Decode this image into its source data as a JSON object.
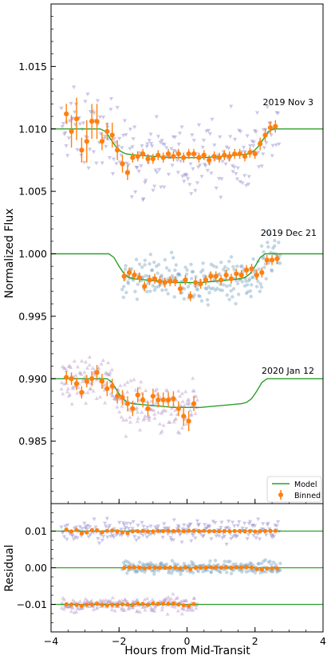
{
  "chart_data": [
    {
      "type": "scatter",
      "panel": "light curves",
      "xlabel": "",
      "ylabel": "Normalized Flux",
      "xlim": [
        -4,
        4
      ],
      "ylim": [
        0.98,
        1.02
      ],
      "y_ticks": [
        "1.015",
        "1.010",
        "1.005",
        "1.000",
        "0.995",
        "0.990",
        "0.985"
      ],
      "y_tick_values": [
        1.015,
        1.01,
        1.005,
        1.0,
        0.995,
        0.99,
        0.985
      ],
      "legend": {
        "position": "lower-right",
        "entries": [
          "Model",
          "Binned"
        ]
      },
      "annotations": [
        {
          "text": "2019 Nov 3",
          "x": 3.3,
          "y": 1.0118
        },
        {
          "text": "2019 Dec 21",
          "x": 3.3,
          "y": 1.0018
        },
        {
          "text": "2020 Jan 12",
          "x": 3.3,
          "y": 0.9918
        }
      ],
      "transits": [
        {
          "label": "2019 Nov 3",
          "raw_color": "#8f85c9",
          "raw_marker": "triangle-down",
          "raw_x_range": [
            -3.7,
            2.7
          ],
          "raw_baseline": 1.01,
          "raw_depth": 0.0023,
          "raw_scatter": 0.0022,
          "model": {
            "x": [
              -4,
              -2.55,
              -2.4,
              -2.25,
              -2.1,
              -1.95,
              -1.8,
              -1.5,
              -1.0,
              -0.5,
              0,
              0.5,
              1.0,
              1.5,
              1.8,
              1.95,
              2.1,
              2.25,
              2.4,
              2.55,
              4
            ],
            "y": [
              1.01,
              1.01,
              1.0098,
              1.0092,
              1.0086,
              1.0082,
              1.008,
              1.0079,
              1.0078,
              1.0077,
              1.0077,
              1.0077,
              1.0078,
              1.0079,
              1.008,
              1.0082,
              1.0086,
              1.0092,
              1.0098,
              1.01,
              1.01
            ]
          },
          "binned": {
            "x": [
              -3.55,
              -3.4,
              -3.25,
              -3.1,
              -2.95,
              -2.8,
              -2.65,
              -2.5,
              -2.35,
              -2.2,
              -2.05,
              -1.9,
              -1.75,
              -1.6,
              -1.45,
              -1.3,
              -1.15,
              -1.0,
              -0.85,
              -0.7,
              -0.55,
              -0.4,
              -0.25,
              -0.1,
              0.05,
              0.2,
              0.35,
              0.5,
              0.65,
              0.8,
              0.95,
              1.1,
              1.25,
              1.4,
              1.55,
              1.7,
              1.85,
              2.0,
              2.15,
              2.3,
              2.45,
              2.6
            ],
            "y": [
              1.0112,
              1.0098,
              1.0108,
              1.0083,
              1.009,
              1.0106,
              1.0106,
              1.009,
              1.0098,
              1.0095,
              1.0083,
              1.0072,
              1.0065,
              1.0077,
              1.0078,
              1.008,
              1.0076,
              1.0076,
              1.0079,
              1.0077,
              1.008,
              1.0078,
              1.008,
              1.0077,
              1.008,
              1.008,
              1.0077,
              1.0079,
              1.0075,
              1.0078,
              1.0077,
              1.0079,
              1.0078,
              1.008,
              1.008,
              1.0078,
              1.0081,
              1.008,
              1.0088,
              1.0095,
              1.0101,
              1.0102
            ],
            "err": [
              0.0008,
              0.0013,
              0.0017,
              0.001,
              0.0017,
              0.0014,
              0.0014,
              0.0007,
              0.0007,
              0.001,
              0.0008,
              0.0007,
              0.0006,
              0.0004,
              0.0004,
              0.0004,
              0.0004,
              0.0004,
              0.0004,
              0.0004,
              0.0004,
              0.0004,
              0.0004,
              0.0004,
              0.0004,
              0.0004,
              0.0004,
              0.0004,
              0.0004,
              0.0004,
              0.0004,
              0.0004,
              0.0004,
              0.0004,
              0.0004,
              0.0004,
              0.0004,
              0.0004,
              0.0005,
              0.0005,
              0.0005,
              0.0005
            ]
          }
        },
        {
          "label": "2019 Dec 21",
          "raw_color": "#7fa7c4",
          "raw_marker": "circle",
          "raw_x_range": [
            -1.9,
            2.75
          ],
          "raw_baseline": 1.0,
          "raw_depth": 0.0022,
          "raw_scatter": 0.0012,
          "model": {
            "x": [
              -4,
              -2.3,
              -2.15,
              -2.0,
              -1.85,
              -1.7,
              -1.55,
              -1.2,
              -0.8,
              -0.4,
              0,
              0.4,
              0.8,
              1.2,
              1.55,
              1.7,
              1.85,
              2.0,
              2.15,
              2.3,
              4
            ],
            "y": [
              1.0,
              1.0,
              0.9997,
              0.999,
              0.9984,
              0.9981,
              0.998,
              0.9979,
              0.9978,
              0.9977,
              0.9977,
              0.9977,
              0.9978,
              0.9979,
              0.998,
              0.9981,
              0.9984,
              0.999,
              0.9997,
              1.0,
              1.0
            ]
          },
          "binned": {
            "x": [
              -1.85,
              -1.7,
              -1.55,
              -1.4,
              -1.25,
              -1.1,
              -0.95,
              -0.8,
              -0.65,
              -0.5,
              -0.35,
              -0.2,
              -0.05,
              0.1,
              0.25,
              0.4,
              0.55,
              0.7,
              0.85,
              1.0,
              1.15,
              1.3,
              1.45,
              1.6,
              1.75,
              1.9,
              2.05,
              2.2,
              2.35,
              2.5,
              2.65
            ],
            "y": [
              0.9982,
              0.9985,
              0.9983,
              0.9981,
              0.9974,
              0.9979,
              0.998,
              0.9978,
              0.9977,
              0.9978,
              0.9978,
              0.9972,
              0.9979,
              0.9966,
              0.9977,
              0.9976,
              0.9979,
              0.9982,
              0.9982,
              0.9979,
              0.9983,
              0.998,
              0.9984,
              0.9983,
              0.9987,
              0.9988,
              0.9983,
              0.9985,
              0.9995,
              0.9995,
              0.9996
            ],
            "err": [
              0.0004,
              0.0004,
              0.0004,
              0.0004,
              0.0004,
              0.0004,
              0.0004,
              0.0004,
              0.0004,
              0.0004,
              0.0004,
              0.0004,
              0.0004,
              0.0004,
              0.0004,
              0.0004,
              0.0004,
              0.0004,
              0.0004,
              0.0004,
              0.0004,
              0.0004,
              0.0004,
              0.0004,
              0.0004,
              0.0004,
              0.0004,
              0.0004,
              0.0004,
              0.0004,
              0.0004
            ]
          }
        },
        {
          "label": "2020 Jan 12",
          "raw_color": "#b99bc9",
          "raw_marker": "triangle-up",
          "raw_x_range": [
            -3.7,
            0.3
          ],
          "raw_baseline": 0.99,
          "raw_depth": 0.0022,
          "raw_scatter": 0.0014,
          "model": {
            "x": [
              -4,
              -2.35,
              -2.2,
              -2.05,
              -1.9,
              -1.75,
              -1.6,
              -1.2,
              -0.8,
              -0.4,
              0,
              0.4,
              0.8,
              1.2,
              1.6,
              1.75,
              1.9,
              2.05,
              2.2,
              2.35,
              4
            ],
            "y": [
              0.99,
              0.99,
              0.9897,
              0.989,
              0.9884,
              0.9881,
              0.988,
              0.9879,
              0.9878,
              0.9877,
              0.9877,
              0.9877,
              0.9878,
              0.9879,
              0.988,
              0.9881,
              0.9884,
              0.989,
              0.9897,
              0.99,
              0.99
            ]
          },
          "binned": {
            "x": [
              -3.55,
              -3.4,
              -3.25,
              -3.1,
              -2.95,
              -2.8,
              -2.65,
              -2.5,
              -2.35,
              -2.2,
              -2.05,
              -1.9,
              -1.75,
              -1.6,
              -1.45,
              -1.3,
              -1.15,
              -1.0,
              -0.85,
              -0.7,
              -0.55,
              -0.4,
              -0.25,
              -0.1,
              0.05,
              0.2
            ],
            "y": [
              0.9901,
              0.99,
              0.9896,
              0.9889,
              0.9898,
              0.99,
              0.9905,
              0.9898,
              0.9892,
              0.9894,
              0.9886,
              0.9885,
              0.988,
              0.9876,
              0.9887,
              0.9883,
              0.9876,
              0.9886,
              0.9883,
              0.9883,
              0.9883,
              0.9884,
              0.9876,
              0.987,
              0.9866,
              0.988
            ],
            "err": [
              0.0005,
              0.0005,
              0.0005,
              0.0005,
              0.0005,
              0.0006,
              0.0006,
              0.0006,
              0.0006,
              0.0006,
              0.0006,
              0.0006,
              0.0006,
              0.0006,
              0.0006,
              0.0006,
              0.0006,
              0.0006,
              0.0006,
              0.0006,
              0.0006,
              0.0006,
              0.0006,
              0.0008,
              0.0008,
              0.0006
            ]
          }
        }
      ],
      "colors": {
        "model": "#2ca02c",
        "binned": "#ff7f0e"
      }
    },
    {
      "type": "scatter",
      "panel": "residuals",
      "xlabel": "Hours from Mid-Transit",
      "ylabel": "Residual",
      "xlim": [
        -4,
        4
      ],
      "ylim": [
        -0.0175,
        0.0175
      ],
      "x_ticks": [
        "−4",
        "−2",
        "0",
        "2",
        "4"
      ],
      "x_tick_values": [
        -4,
        -2,
        0,
        2,
        4
      ],
      "y_ticks": [
        "0.01",
        "0.00",
        "−0.01"
      ],
      "y_tick_values": [
        0.01,
        0.0,
        -0.01
      ],
      "offsets": [
        0.01,
        0.0,
        -0.01
      ],
      "residual_scatter": [
        0.002,
        0.0012,
        0.0014
      ],
      "binned_residual_scatter": 0.0004
    }
  ]
}
